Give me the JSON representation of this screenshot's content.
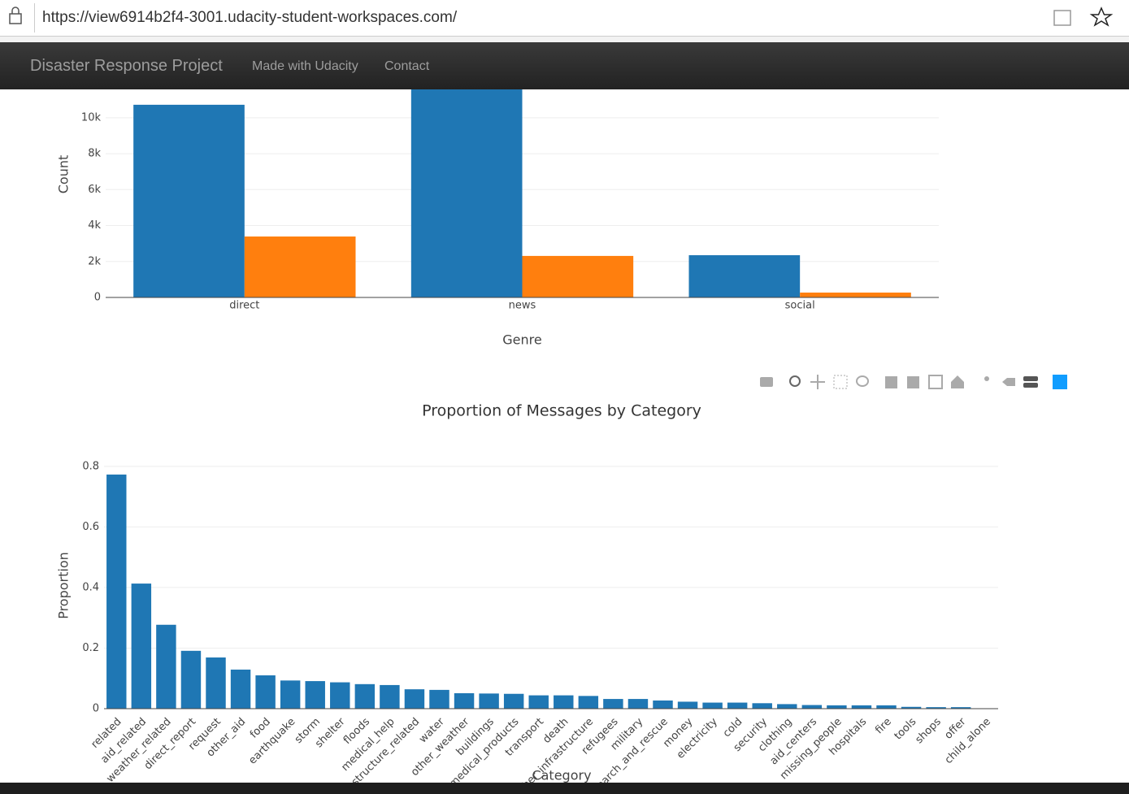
{
  "browser": {
    "url": "https://view6914b2f4-3001.udacity-student-workspaces.com/"
  },
  "navbar": {
    "brand": "Disaster Response Project",
    "links": [
      "Made with Udacity",
      "Contact"
    ]
  },
  "chart_data": [
    {
      "type": "bar",
      "x_label": "Genre",
      "y_label": "Count",
      "categories": [
        "direct",
        "news",
        "social"
      ],
      "series": [
        {
          "color": "#1f77b4",
          "values": [
            10720,
            13050,
            2350
          ]
        },
        {
          "color": "#ff7f0e",
          "values": [
            3390,
            2310,
            270
          ]
        }
      ],
      "ylim": [
        0,
        13700
      ],
      "yticks": [
        0,
        {
          "value": 2000,
          "label": "2k"
        },
        {
          "value": 4000,
          "label": "4k"
        },
        {
          "value": 6000,
          "label": "6k"
        },
        {
          "value": 8000,
          "label": "8k"
        },
        {
          "value": 10000,
          "label": "10k"
        }
      ],
      "grid": true
    },
    {
      "type": "bar",
      "title": "Proportion of Messages by Category",
      "x_label": "Category",
      "y_label": "Proportion",
      "categories": [
        "related",
        "aid_related",
        "weather_related",
        "direct_report",
        "request",
        "other_aid",
        "food",
        "earthquake",
        "storm",
        "shelter",
        "floods",
        "medical_help",
        "infrastructure_related",
        "water",
        "other_weather",
        "buildings",
        "medical_products",
        "transport",
        "death",
        "other_infrastructure",
        "refugees",
        "military",
        "search_and_rescue",
        "money",
        "electricity",
        "cold",
        "security",
        "clothing",
        "aid_centers",
        "missing_people",
        "hospitals",
        "fire",
        "tools",
        "shops",
        "offer",
        "child_alone"
      ],
      "series": [
        {
          "color": "#1f77b4",
          "values": [
            0.773,
            0.413,
            0.277,
            0.191,
            0.169,
            0.129,
            0.11,
            0.093,
            0.091,
            0.087,
            0.081,
            0.078,
            0.064,
            0.062,
            0.051,
            0.05,
            0.049,
            0.044,
            0.044,
            0.042,
            0.032,
            0.032,
            0.027,
            0.023,
            0.02,
            0.02,
            0.018,
            0.015,
            0.012,
            0.011,
            0.011,
            0.011,
            0.006,
            0.005,
            0.005,
            0
          ]
        }
      ],
      "ylim": [
        0,
        0.813
      ],
      "yticks": [
        0,
        0.2,
        0.4,
        0.6,
        0.8
      ],
      "grid": true
    }
  ]
}
